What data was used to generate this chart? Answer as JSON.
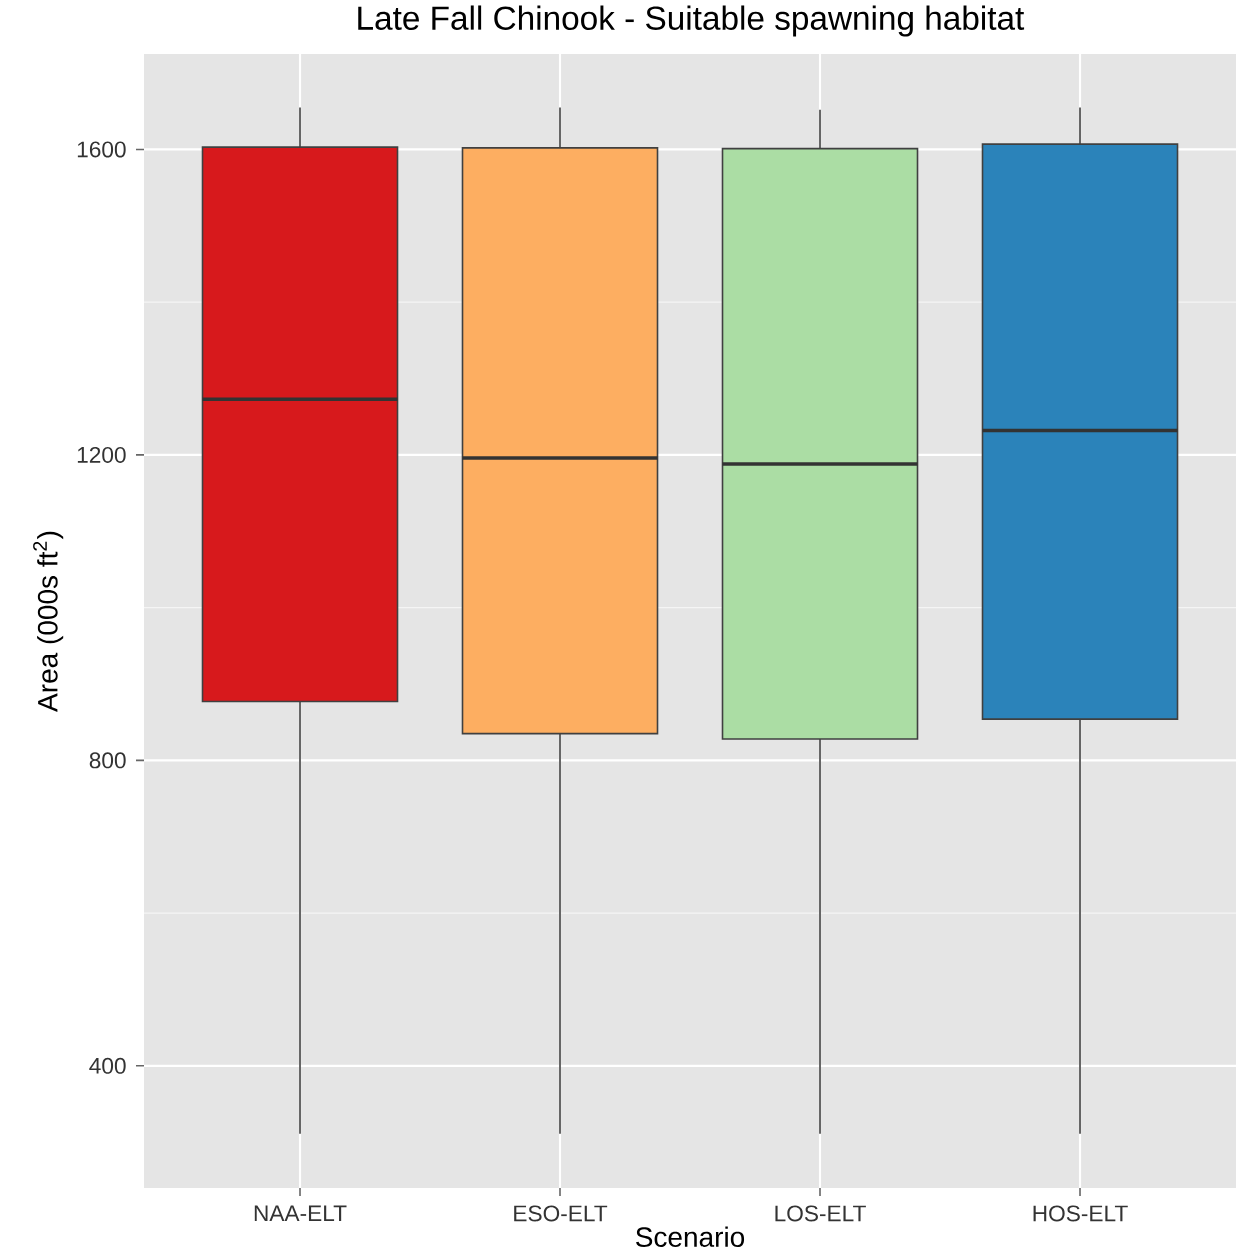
{
  "chart_data": {
    "type": "box",
    "title": "Late Fall Chinook - Suitable spawning habitat",
    "xlabel": "Scenario",
    "ylabel": "Area (000s ft$^{2}$)",
    "categories": [
      "NAA-ELT",
      "ESO-ELT",
      "LOS-ELT",
      "HOS-ELT"
    ],
    "boxes": [
      {
        "low": 311,
        "q1": 877,
        "median": 1273,
        "q3": 1603,
        "high": 1655
      },
      {
        "low": 311,
        "q1": 835,
        "median": 1196,
        "q3": 1602,
        "high": 1655
      },
      {
        "low": 311,
        "q1": 828,
        "median": 1188,
        "q3": 1601,
        "high": 1652
      },
      {
        "low": 311,
        "q1": 854,
        "median": 1232,
        "q3": 1607,
        "high": 1655
      }
    ],
    "colors": [
      "#d7191c",
      "#fdae61",
      "#abdda4",
      "#2b83ba"
    ],
    "ylim": [
      240,
      1725
    ],
    "yticks": [
      400,
      800,
      1200,
      1600
    ],
    "grid": true
  }
}
